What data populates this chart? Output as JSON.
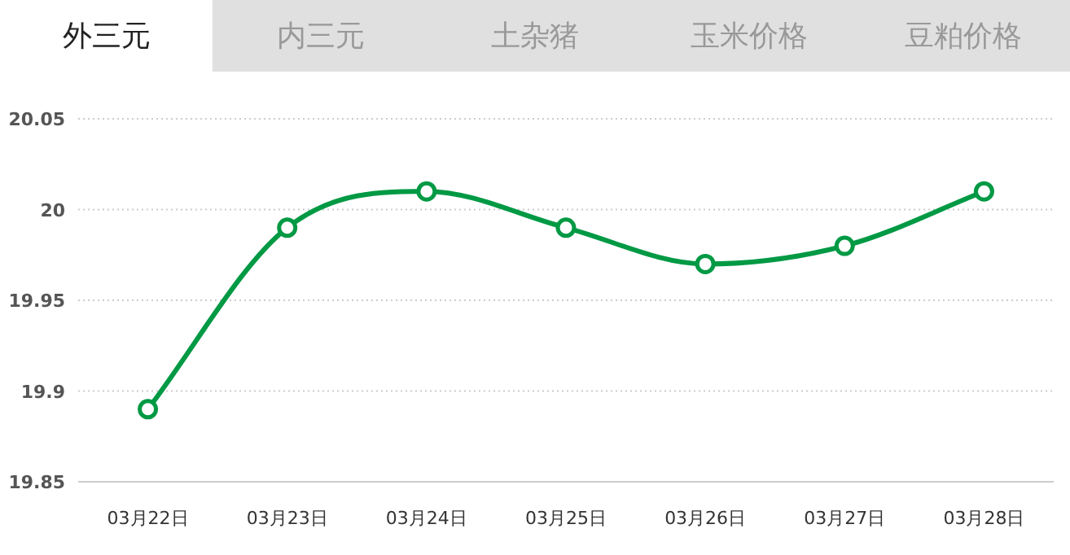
{
  "chart_data": {
    "type": "line",
    "title": "外三元",
    "annotations": [
      "内三元",
      "土杂猪",
      "玉米价格",
      "豆粕价格"
    ],
    "categories": [
      "03月22日",
      "03月23日",
      "03月24日",
      "03月25日",
      "03月26日",
      "03月27日",
      "03月28日"
    ],
    "series": [
      {
        "color": "#009944",
        "values": [
          19.89,
          19.99,
          20.01,
          19.99,
          19.97,
          19.98,
          20.01
        ]
      }
    ],
    "ylim": [
      19.85,
      20.05
    ],
    "yticks": [
      19.85,
      19.9,
      19.95,
      20,
      20.05
    ],
    "grid": "y",
    "marker": "circle",
    "line_style": "solid"
  }
}
